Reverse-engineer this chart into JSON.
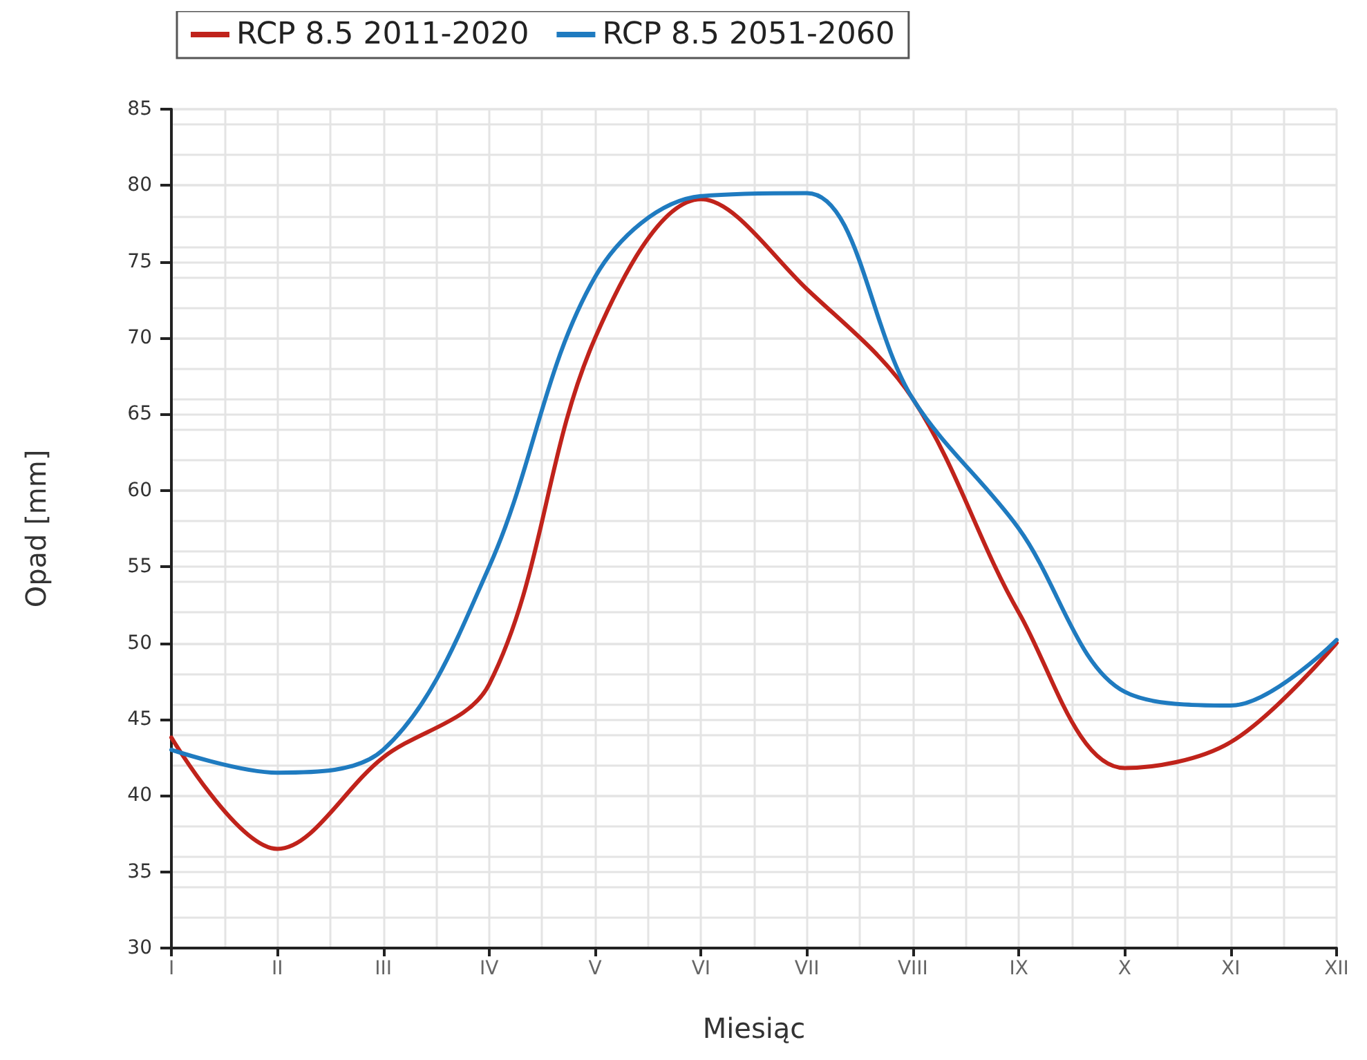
{
  "chart_data": {
    "type": "line",
    "xlabel": "Miesiąc",
    "ylabel": "Opad [mm]",
    "categories": [
      "I",
      "II",
      "III",
      "IV",
      "V",
      "VI",
      "VII",
      "VIII",
      "IX",
      "X",
      "XI",
      "XII"
    ],
    "series": [
      {
        "name": "RCP 8.5 2011-2020",
        "color": "#c0231b",
        "values": [
          43.8,
          36.5,
          42.5,
          47.3,
          70,
          79.1,
          73.2,
          66,
          52,
          41.8,
          43.5,
          50
        ]
      },
      {
        "name": "RCP 8.5 2051-2060",
        "color": "#1f7bc0",
        "values": [
          43,
          41.5,
          43,
          55,
          74,
          79.3,
          79.5,
          66,
          57.5,
          46.8,
          45.9,
          50.2
        ]
      }
    ],
    "ylim": [
      30,
      85
    ],
    "yticks": [
      30,
      35,
      40,
      45,
      50,
      55,
      60,
      65,
      70,
      75,
      80,
      85
    ],
    "grid": true,
    "legend": "top",
    "marker": "none",
    "line_style": "solid"
  }
}
